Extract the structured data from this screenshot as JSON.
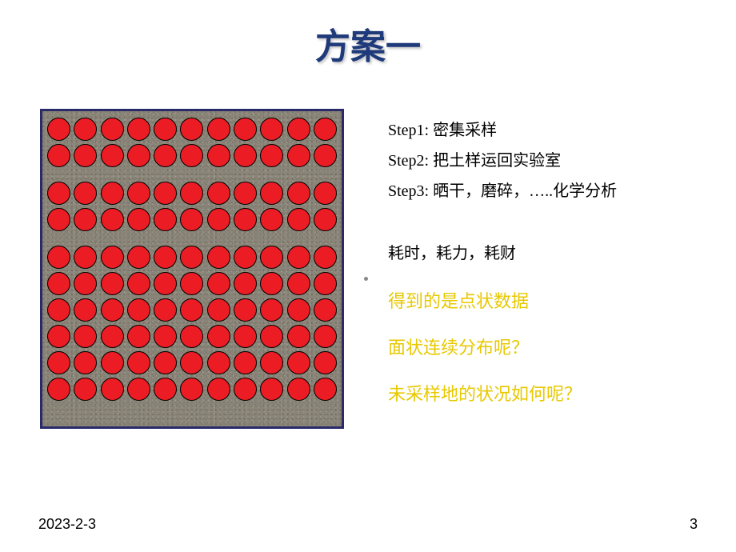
{
  "title": "方案一",
  "diagram": {
    "rows": 10,
    "cols": 11,
    "row_gaps_after": [
      1,
      3
    ],
    "gap_small": 4,
    "gap_large": 18,
    "dot_color": "#ec1c24",
    "dot_border": "#000000",
    "box_border": "#2a2a6a",
    "box_bg": "#8a8578"
  },
  "steps": [
    "Step1: 密集采样",
    "Step2: 把土样运回实验室",
    "Step3: 晒干，磨碎，…..化学分析"
  ],
  "cost_line": "耗时，耗力，耗财",
  "highlight_lines": [
    "得到的是点状数据",
    "面状连续分布呢？",
    "未采样地的状况如何呢？"
  ],
  "colors": {
    "title": "#1f3a7a",
    "body_text": "#000000",
    "highlight_text": "#e8c800",
    "background": "#ffffff"
  },
  "footer": {
    "date": "2023-2-3",
    "page": "3"
  }
}
